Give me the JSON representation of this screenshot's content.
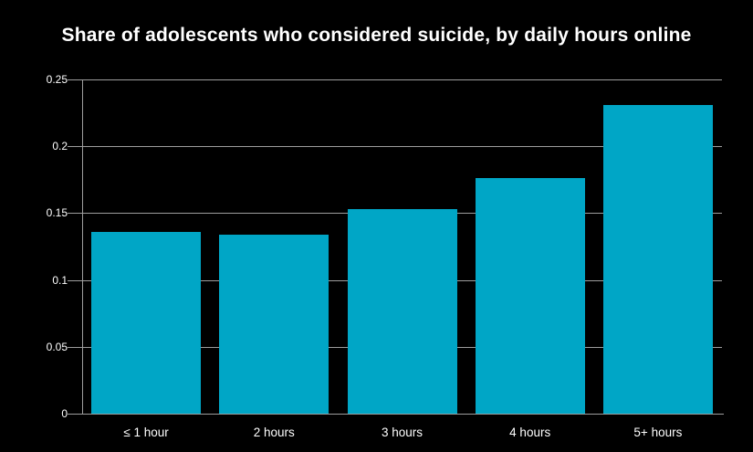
{
  "chart_data": {
    "type": "bar",
    "title": "Share of adolescents who considered suicide, by daily hours online",
    "categories": [
      "≤ 1 hour",
      "2 hours",
      "3 hours",
      "4 hours",
      "5+ hours"
    ],
    "values": [
      0.136,
      0.134,
      0.153,
      0.176,
      0.231
    ],
    "xlabel": "",
    "ylabel": "",
    "ylim": [
      0,
      0.25
    ],
    "yticks": [
      0,
      0.05,
      0.1,
      0.15,
      0.2,
      0.25
    ],
    "ytick_labels": [
      "0",
      "0.05",
      "0.1",
      "0.15",
      "0.2",
      "0.25"
    ],
    "grid": true,
    "legend_position": "none",
    "colors": {
      "background": "#000000",
      "bar": "#00a6c6",
      "grid": "#9e9e9e",
      "text": "#ffffff"
    }
  }
}
